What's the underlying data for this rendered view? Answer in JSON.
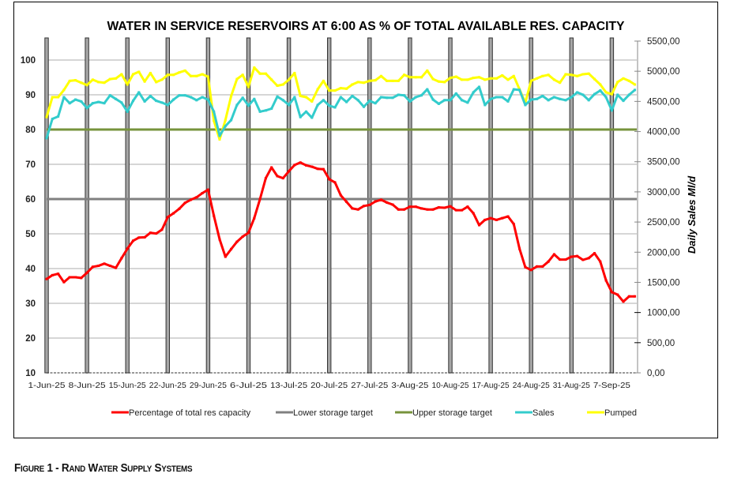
{
  "caption": "Figure 1 - Rand Water Supply Systems",
  "chart_data": {
    "type": "line",
    "title": "WATER IN SERVICE RESERVOIRS AT 6:00  AS % OF TOTAL AVAILABLE RES. CAPACITY",
    "xlabel": "",
    "ylabel": "",
    "y2label": "Daily Sales Ml/d",
    "x_start": "1-Jun-25",
    "x_frequency": "daily",
    "x_tick_labels": [
      "1-Jun-25",
      "8-Jun-25",
      "15-Jun-25",
      "22-Jun-25",
      "29-Jun-25",
      "6-Jul-25",
      "13-Jul-25",
      "20-Jul-25",
      "27-Jul-25",
      "3-Aug-25",
      "10-Aug-25",
      "17-Aug-25",
      "24-Aug-25",
      "31-Aug-25",
      "7-Sep-25"
    ],
    "ylim": [
      10,
      100
    ],
    "y_ticks": [
      "10",
      "20",
      "30",
      "40",
      "50",
      "60",
      "70",
      "80",
      "90",
      "100"
    ],
    "y2lim": [
      0,
      5500
    ],
    "y2_ticks": [
      "0,00",
      "500,00",
      "1000,00",
      "1500,00",
      "2000,00",
      "2500,00",
      "3000,00",
      "3500,00",
      "4000,00",
      "4500,00",
      "5000,00",
      "5500,00"
    ],
    "grid": true,
    "legend_position": "bottom",
    "series": [
      {
        "name": "Percentage of total res capacity",
        "axis": "left",
        "color": "#ff0000",
        "values": [
          37.0,
          38.1,
          38.5,
          36.1,
          37.5,
          37.5,
          37.3,
          38.8,
          40.5,
          40.8,
          41.4,
          40.8,
          40.2,
          43.0,
          45.7,
          48.0,
          48.9,
          49.0,
          50.3,
          50.1,
          51.2,
          54.8,
          55.9,
          57.2,
          58.9,
          59.8,
          60.5,
          61.7,
          62.7,
          55.2,
          48.4,
          43.4,
          45.6,
          47.7,
          49.2,
          50.3,
          54.5,
          60.0,
          66.0,
          69.1,
          66.6,
          66.0,
          68.0,
          69.8,
          70.5,
          69.7,
          69.3,
          68.7,
          68.6,
          65.7,
          64.8,
          61.1,
          59.2,
          57.3,
          57.0,
          58.0,
          58.3,
          59.3,
          59.8,
          59.0,
          58.4,
          57.0,
          57.0,
          57.8,
          57.8,
          57.3,
          57.0,
          57.0,
          57.6,
          57.5,
          57.9,
          56.8,
          56.8,
          57.8,
          55.9,
          52.5,
          54.0,
          54.5,
          54.0,
          54.5,
          55.0,
          52.8,
          45.7,
          40.4,
          39.6,
          40.6,
          40.6,
          42.0,
          44.1,
          42.6,
          42.6,
          43.4,
          43.6,
          42.5,
          43.0,
          44.4,
          42.0,
          36.6,
          33.2,
          32.5,
          30.5,
          32.0,
          32.0
        ]
      },
      {
        "name": "Lower storage target",
        "axis": "left",
        "color": "#808080",
        "constant": 60
      },
      {
        "name": "Upper storage target",
        "axis": "left",
        "color": "#77933c",
        "constant": 80
      },
      {
        "name": "Sales",
        "axis": "right",
        "color": "#33cccc",
        "values": [
          3890,
          4210,
          4250,
          4570,
          4470,
          4530,
          4500,
          4390,
          4470,
          4490,
          4470,
          4600,
          4540,
          4480,
          4330,
          4510,
          4650,
          4500,
          4590,
          4510,
          4480,
          4440,
          4530,
          4600,
          4600,
          4570,
          4520,
          4570,
          4530,
          4330,
          3930,
          4090,
          4190,
          4440,
          4560,
          4430,
          4540,
          4330,
          4350,
          4380,
          4580,
          4520,
          4440,
          4570,
          4240,
          4330,
          4230,
          4440,
          4520,
          4430,
          4400,
          4570,
          4490,
          4590,
          4520,
          4410,
          4510,
          4470,
          4570,
          4560,
          4560,
          4610,
          4600,
          4500,
          4570,
          4600,
          4700,
          4530,
          4460,
          4520,
          4520,
          4630,
          4520,
          4480,
          4650,
          4740,
          4440,
          4540,
          4570,
          4570,
          4500,
          4700,
          4690,
          4440,
          4530,
          4540,
          4590,
          4520,
          4570,
          4540,
          4520,
          4570,
          4650,
          4610,
          4520,
          4620,
          4680,
          4570,
          4350,
          4610,
          4510,
          4610,
          4690
        ]
      },
      {
        "name": "Pumped",
        "axis": "right",
        "color": "#ffff00",
        "values": [
          4240,
          4570,
          4570,
          4690,
          4840,
          4850,
          4810,
          4770,
          4860,
          4820,
          4810,
          4870,
          4880,
          4950,
          4780,
          4950,
          4990,
          4830,
          4970,
          4820,
          4860,
          4940,
          4940,
          4980,
          5010,
          4920,
          4920,
          4950,
          4910,
          4180,
          3870,
          4190,
          4590,
          4870,
          4940,
          4740,
          5060,
          4960,
          4960,
          4860,
          4760,
          4780,
          4860,
          4970,
          4590,
          4570,
          4500,
          4700,
          4840,
          4680,
          4680,
          4720,
          4710,
          4780,
          4820,
          4810,
          4840,
          4850,
          4920,
          4840,
          4840,
          4840,
          4940,
          4900,
          4900,
          4900,
          5010,
          4870,
          4830,
          4820,
          4890,
          4910,
          4860,
          4860,
          4890,
          4900,
          4860,
          4880,
          4880,
          4930,
          4860,
          4920,
          4700,
          4480,
          4840,
          4880,
          4920,
          4940,
          4860,
          4810,
          4950,
          4940,
          4920,
          4950,
          4960,
          4870,
          4780,
          4650,
          4620,
          4820,
          4880,
          4840,
          4780
        ]
      }
    ]
  }
}
